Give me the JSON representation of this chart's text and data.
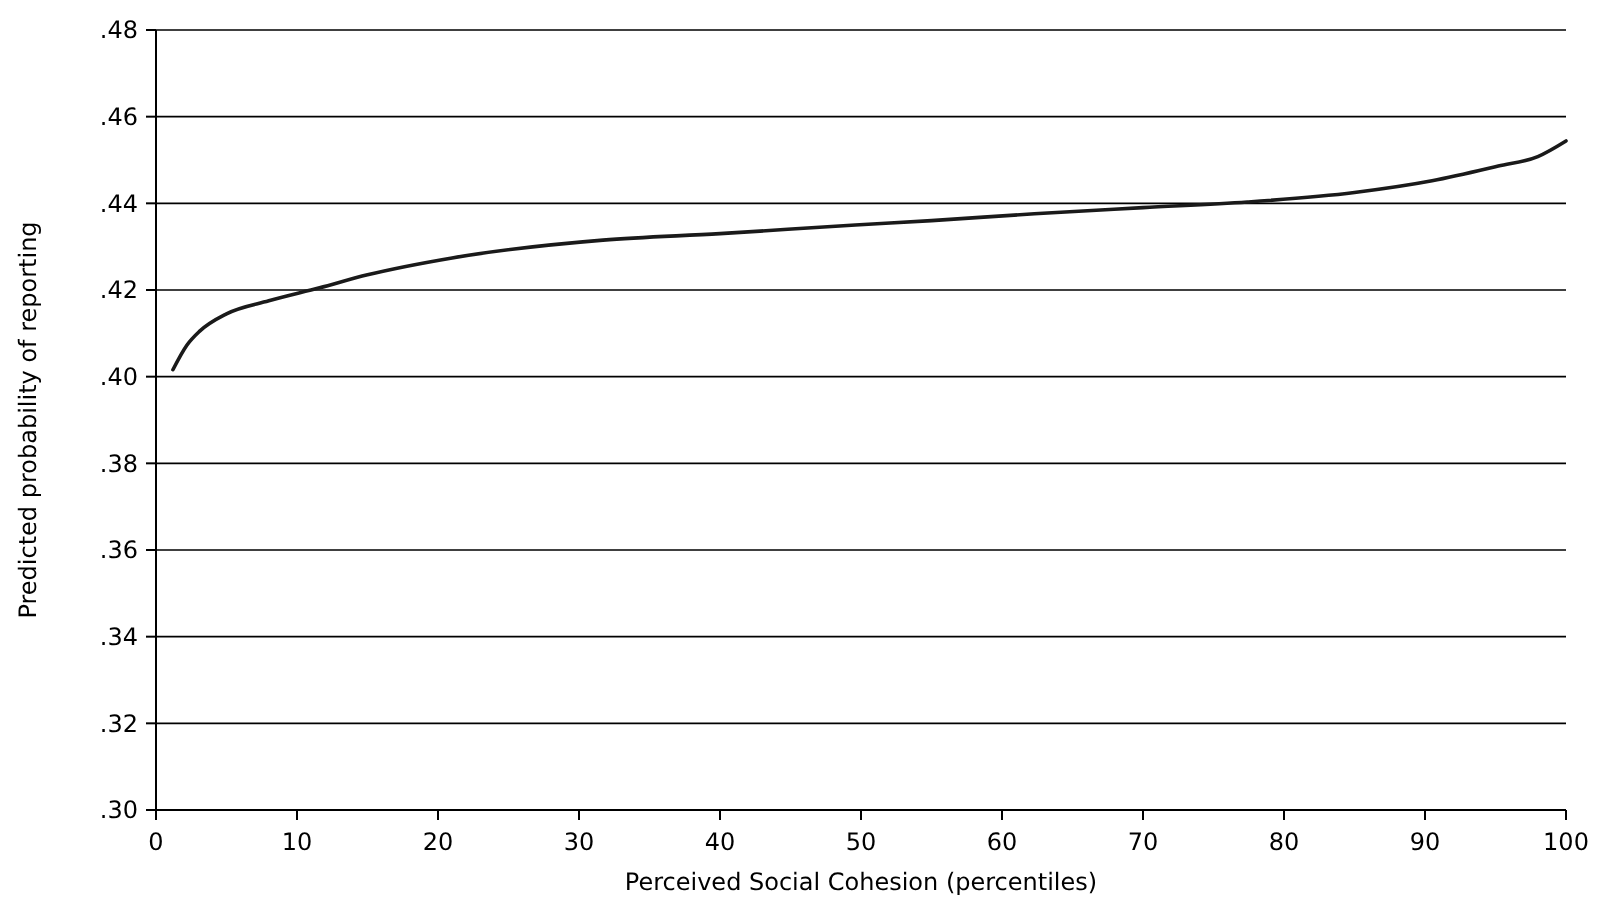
{
  "chart_data": {
    "type": "line",
    "xlabel": "Perceived Social Cohesion (percentiles)",
    "ylabel": "Predicted probability of reporting",
    "x": [
      1.2,
      2.2,
      3.1,
      5,
      8,
      11.6,
      15,
      21,
      31.7,
      40,
      49.6,
      55,
      62.3,
      70,
      77.4,
      85,
      90.5,
      95.2,
      98,
      100
    ],
    "series": [
      {
        "color": "#1a1a1a",
        "values": [
          0.4016,
          0.4073,
          0.4105,
          0.4145,
          0.4175,
          0.4205,
          0.4235,
          0.4274,
          0.4315,
          0.433,
          0.435,
          0.436,
          0.4376,
          0.439,
          0.4403,
          0.4425,
          0.4452,
          0.4486,
          0.4508,
          0.4544
        ]
      }
    ],
    "xlim": [
      0,
      100
    ],
    "xticks": [
      0,
      10,
      20,
      30,
      40,
      50,
      60,
      70,
      80,
      90,
      100
    ],
    "ylim": [
      0.3,
      0.48
    ],
    "yticks": [
      {
        "value": 0.3,
        "label": ".30"
      },
      {
        "value": 0.32,
        "label": ".32"
      },
      {
        "value": 0.34,
        "label": ".34"
      },
      {
        "value": 0.36,
        "label": ".36"
      },
      {
        "value": 0.38,
        "label": ".38"
      },
      {
        "value": 0.4,
        "label": ".40"
      },
      {
        "value": 0.42,
        "label": ".42"
      },
      {
        "value": 0.44,
        "label": ".44"
      },
      {
        "value": 0.46,
        "label": ".46"
      },
      {
        "value": 0.48,
        "label": ".48"
      }
    ],
    "grid": "y",
    "marker": "none",
    "line_style": "solid"
  }
}
